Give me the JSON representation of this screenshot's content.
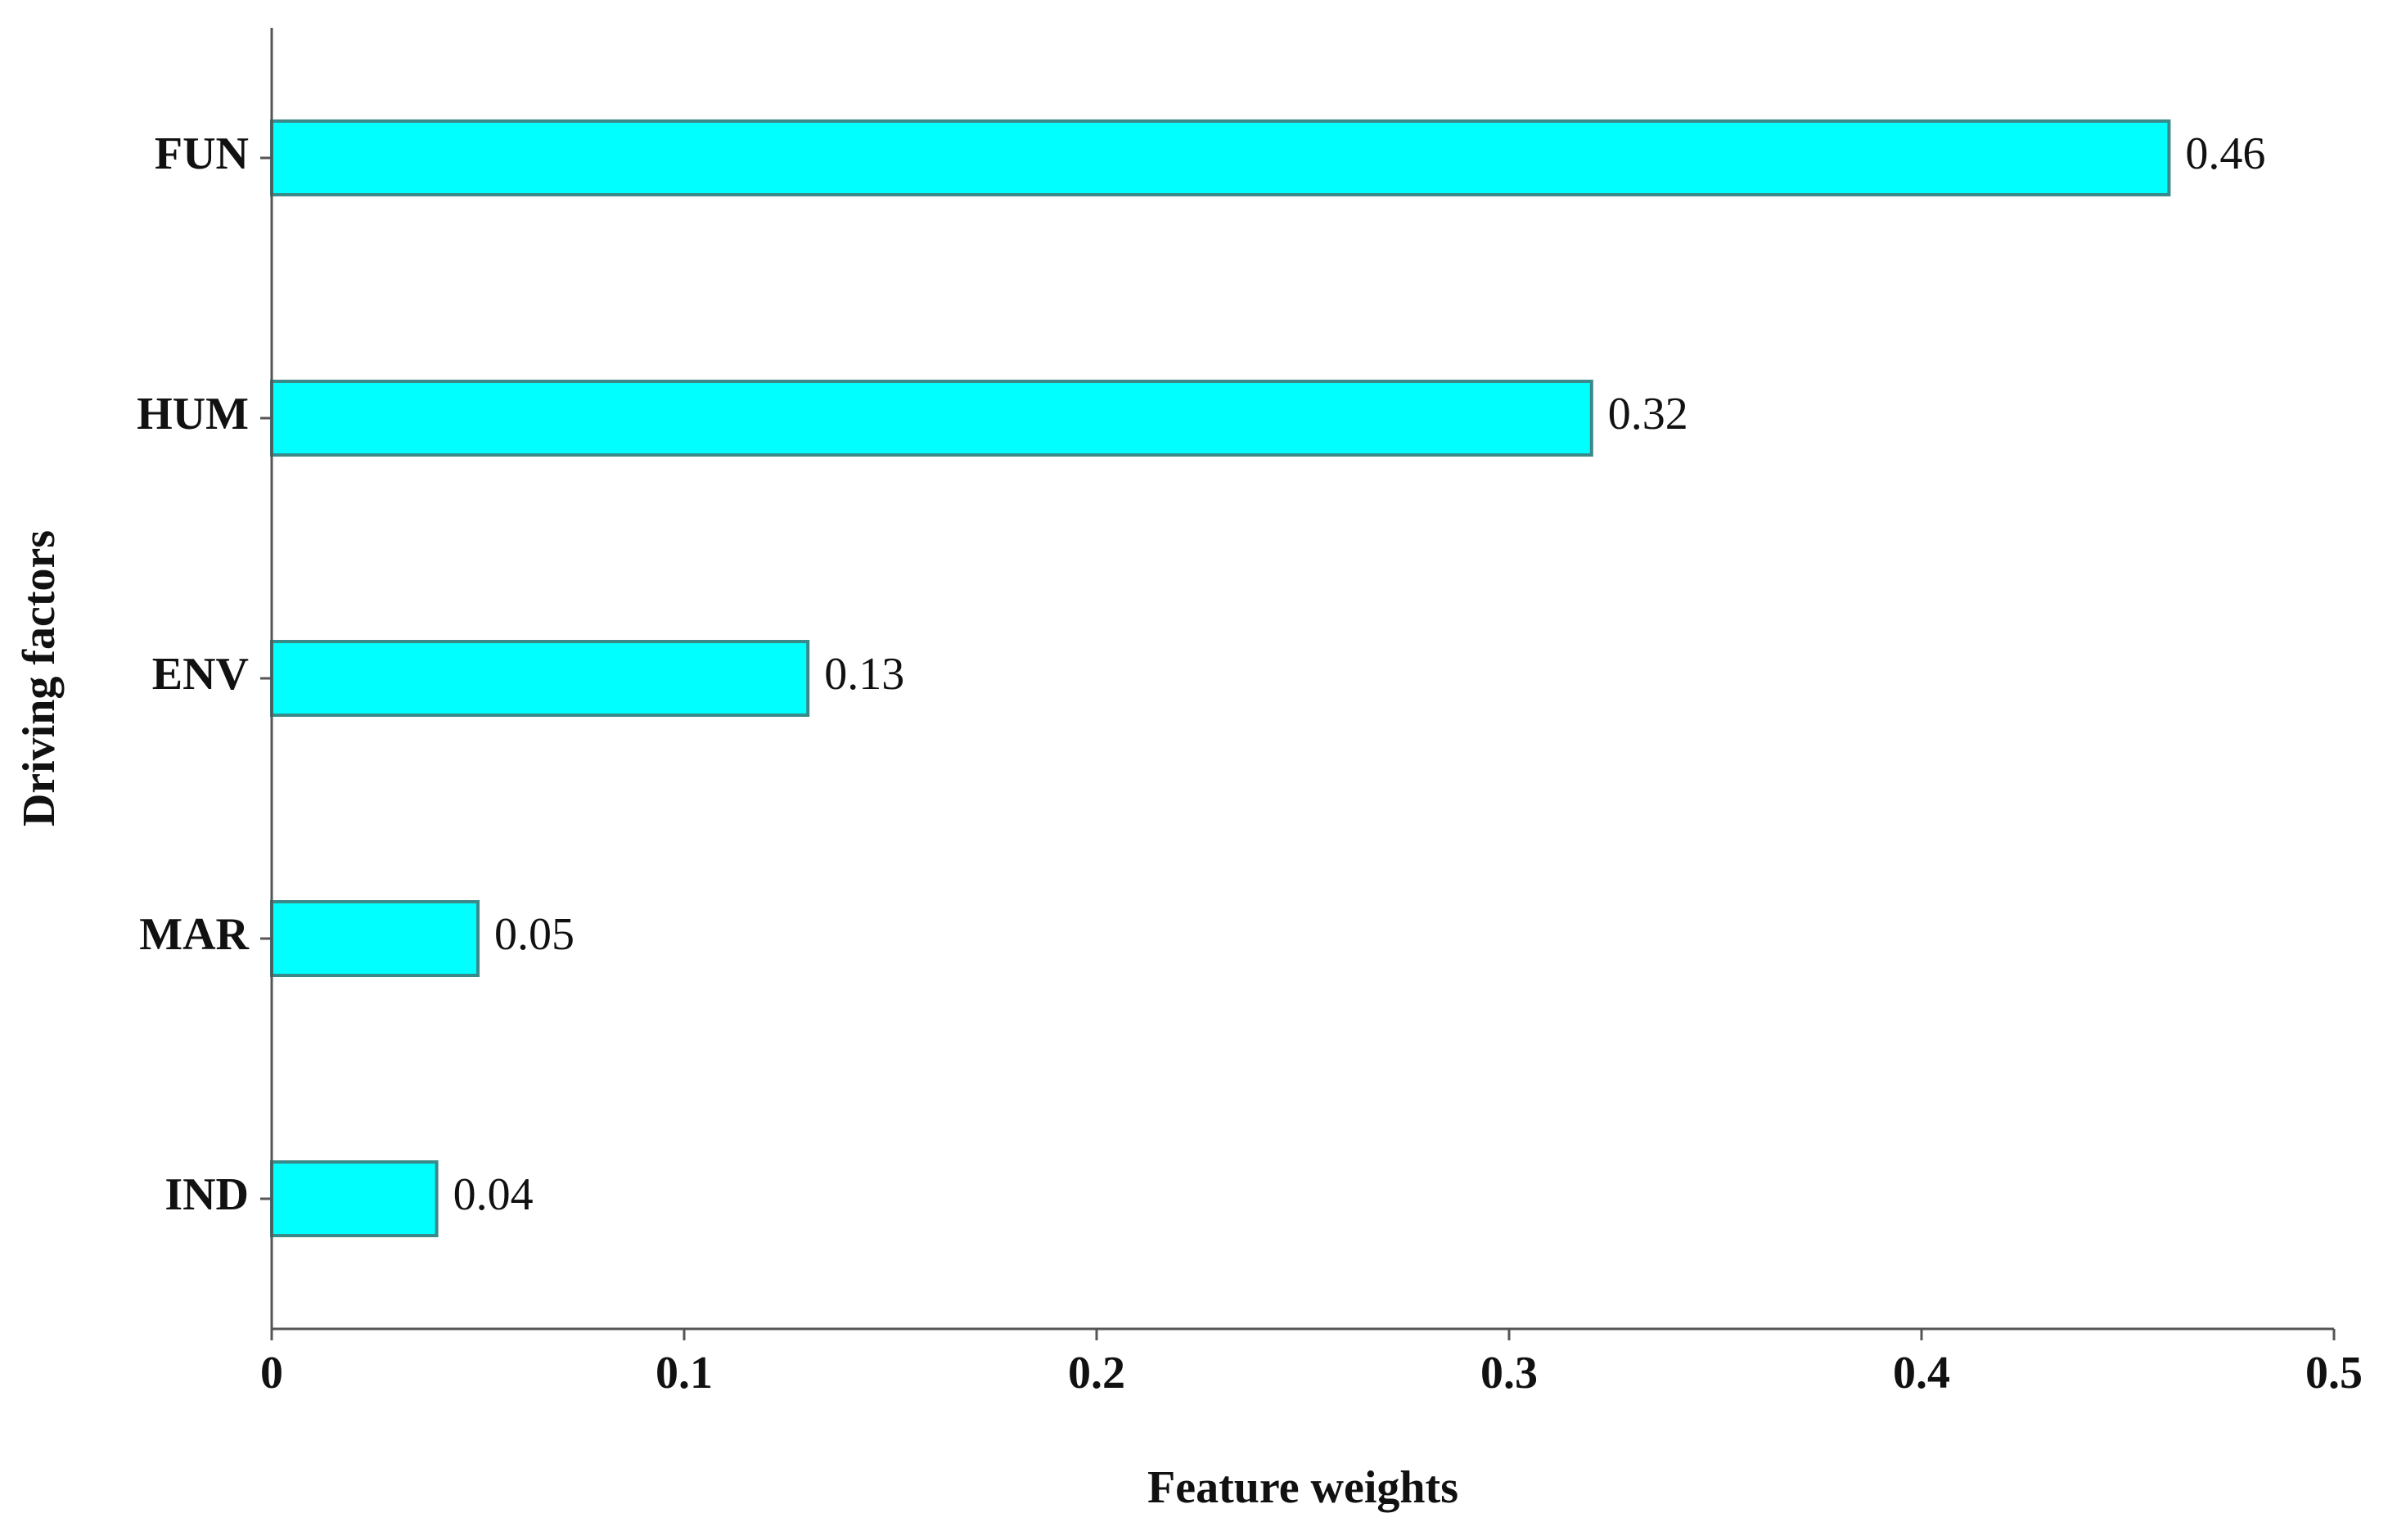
{
  "chart_data": {
    "type": "bar",
    "orientation": "horizontal",
    "categories": [
      "FUN",
      "HUM",
      "ENV",
      "MAR",
      "IND"
    ],
    "values": [
      0.46,
      0.32,
      0.13,
      0.05,
      0.04
    ],
    "value_labels": [
      "0.46",
      "0.32",
      "0.13",
      "0.05",
      "0.04"
    ],
    "xlabel": "Feature weights",
    "ylabel": "Driving factors",
    "xlim": [
      0,
      0.5
    ],
    "xticks": [
      0,
      0.1,
      0.2,
      0.3,
      0.4,
      0.5
    ],
    "xtick_labels": [
      "0",
      "0.1",
      "0.2",
      "0.3",
      "0.4",
      "0.5"
    ],
    "grid": false,
    "legend": "none",
    "colors": {
      "bar_fill": "#00FFFF",
      "bar_stroke": "#3A8A8A",
      "axis": "#555555"
    }
  }
}
